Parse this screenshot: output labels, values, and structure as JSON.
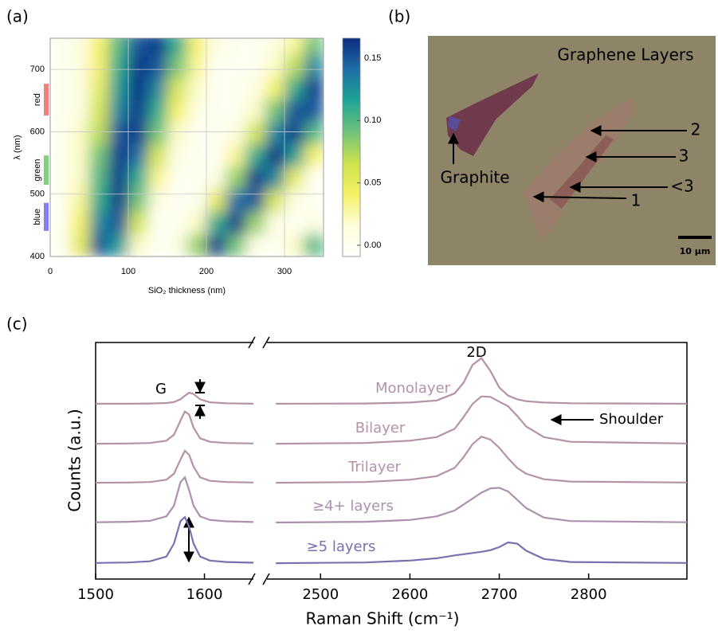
{
  "panel_labels": [
    "(a)",
    "(b)",
    "(c)"
  ],
  "chart_data": [
    {
      "type": "heatmap",
      "xlabel": "SiO₂ thickness (nm)",
      "ylabel": "λ (nm)",
      "xlim": [
        0,
        350
      ],
      "xticks": [
        0,
        100,
        200,
        300
      ],
      "ylim": [
        400,
        750
      ],
      "yticks": [
        400,
        500,
        600,
        700
      ],
      "grid": true,
      "x": [
        12.5,
        37.5,
        62.5,
        87.5,
        112.5,
        137.5,
        162.5,
        187.5,
        212.5,
        237.5,
        262.5,
        287.5,
        312.5,
        337.5
      ],
      "y": [
        418,
        454,
        490,
        526,
        562,
        598,
        634,
        670,
        706,
        742
      ],
      "z": [
        [
          0,
          0.05,
          0.15,
          0.12,
          0.02,
          0,
          0.01,
          0.08,
          0.16,
          0.09,
          0.01,
          0,
          0.02,
          0.1
        ],
        [
          0,
          0.04,
          0.13,
          0.15,
          0.06,
          0,
          0,
          0.02,
          0.11,
          0.16,
          0.08,
          0.01,
          0,
          0.01
        ],
        [
          0,
          0.03,
          0.11,
          0.16,
          0.09,
          0.01,
          0,
          0,
          0.05,
          0.14,
          0.15,
          0.06,
          0.01,
          0
        ],
        [
          0,
          0.02,
          0.1,
          0.16,
          0.11,
          0.03,
          0,
          0,
          0.01,
          0.08,
          0.16,
          0.13,
          0.05,
          0
        ],
        [
          0,
          0.02,
          0.09,
          0.16,
          0.14,
          0.06,
          0.01,
          0,
          0,
          0.03,
          0.11,
          0.165,
          0.12,
          0.04
        ],
        [
          0,
          0.02,
          0.07,
          0.15,
          0.16,
          0.09,
          0.02,
          0,
          0,
          0.01,
          0.06,
          0.13,
          0.16,
          0.1
        ],
        [
          0,
          0.01,
          0.06,
          0.13,
          0.16,
          0.11,
          0.04,
          0.01,
          0,
          0,
          0.02,
          0.09,
          0.15,
          0.15
        ],
        [
          0,
          0.01,
          0.05,
          0.12,
          0.165,
          0.13,
          0.06,
          0.02,
          0,
          0,
          0.01,
          0.04,
          0.11,
          0.16
        ],
        [
          0,
          0.01,
          0.04,
          0.11,
          0.16,
          0.15,
          0.09,
          0.03,
          0,
          0,
          0,
          0.02,
          0.07,
          0.13
        ],
        [
          0,
          0.01,
          0.04,
          0.1,
          0.15,
          0.16,
          0.11,
          0.04,
          0.01,
          0,
          0,
          0.01,
          0.03,
          0.09
        ]
      ],
      "colormap": [
        "#ffffff",
        "#fdfdd8",
        "#f5f066",
        "#cce24c",
        "#6fc27a",
        "#1fa496",
        "#1f6fa6",
        "#0c2a82"
      ],
      "colorbar": {
        "lim": [
          -0.009,
          0.166
        ],
        "ticks": [
          {
            "value": 0,
            "label": "0.00"
          },
          0.05,
          {
            "value": 0.1,
            "label": "0.10"
          },
          0.15
        ]
      },
      "bands": [
        {
          "name": "red",
          "range": [
            626,
            677
          ],
          "color": "#f08080"
        },
        {
          "name": "green",
          "range": [
            515,
            562
          ],
          "color": "#7fd07f"
        },
        {
          "name": "blue",
          "range": [
            441,
            486
          ],
          "color": "#8080f0"
        }
      ]
    },
    {
      "type": "line",
      "xlabel": "Raman Shift (cm⁻¹)",
      "ylabel": "Counts (a.u.)",
      "xlim": [
        [
          1500,
          1645
        ],
        [
          2440,
          2910
        ]
      ],
      "xticks": [
        1500,
        1600,
        2500,
        2600,
        2700,
        2800
      ],
      "ylim": [
        0,
        10
      ],
      "x": [
        1500,
        1530,
        1550,
        1565,
        1572,
        1578,
        1582,
        1586,
        1590,
        1596,
        1605,
        1620,
        1645,
        2450,
        2550,
        2600,
        2630,
        2650,
        2660,
        2670,
        2680,
        2690,
        2700,
        2710,
        2720,
        2730,
        2750,
        2780,
        2910
      ],
      "series": [
        {
          "name": "Monolayer",
          "color": "#b592a8",
          "values": [
            7.41,
            7.41,
            7.42,
            7.44,
            7.48,
            7.6,
            7.75,
            7.88,
            7.82,
            7.6,
            7.47,
            7.43,
            7.41,
            7.41,
            7.42,
            7.46,
            7.55,
            7.85,
            8.3,
            9.05,
            9.34,
            8.8,
            8.1,
            7.75,
            7.6,
            7.52,
            7.46,
            7.43,
            7.41
          ]
        },
        {
          "name": "Bilayer",
          "color": "#b592a8",
          "values": [
            5.72,
            5.73,
            5.75,
            5.85,
            6.1,
            6.7,
            7.08,
            6.95,
            6.4,
            5.95,
            5.8,
            5.75,
            5.73,
            5.72,
            5.75,
            5.85,
            6.0,
            6.35,
            6.85,
            7.4,
            7.72,
            7.7,
            7.5,
            7.3,
            6.9,
            6.45,
            6.0,
            5.8,
            5.73
          ]
        },
        {
          "name": "Trilayer",
          "color": "#b592a8",
          "values": [
            4.07,
            4.08,
            4.1,
            4.2,
            4.45,
            5.05,
            5.42,
            5.25,
            4.75,
            4.3,
            4.15,
            4.1,
            4.08,
            4.07,
            4.1,
            4.2,
            4.35,
            4.7,
            5.15,
            5.7,
            6.02,
            5.9,
            5.55,
            5.1,
            4.7,
            4.45,
            4.22,
            4.12,
            4.08
          ]
        },
        {
          "name": "≥4+ layers",
          "color": "#ad8fb0",
          "values": [
            2.4,
            2.42,
            2.46,
            2.65,
            3.1,
            4.1,
            4.3,
            3.75,
            3.1,
            2.65,
            2.5,
            2.44,
            2.41,
            2.39,
            2.42,
            2.5,
            2.65,
            2.9,
            3.15,
            3.4,
            3.65,
            3.83,
            3.86,
            3.7,
            3.35,
            3.0,
            2.6,
            2.45,
            2.4
          ]
        },
        {
          "name": "≥5 layers",
          "color": "#7b6fb0",
          "values": [
            0.68,
            0.7,
            0.75,
            0.95,
            1.5,
            2.45,
            2.62,
            2.2,
            1.5,
            0.95,
            0.78,
            0.72,
            0.69,
            0.67,
            0.7,
            0.78,
            0.88,
            1.0,
            1.05,
            1.1,
            1.15,
            1.22,
            1.35,
            1.55,
            1.5,
            1.2,
            0.85,
            0.72,
            0.68
          ]
        }
      ],
      "annotations": [
        "G",
        "2D",
        "Shoulder"
      ]
    }
  ],
  "micrograph": {
    "title": "Graphene Layers",
    "labels": [
      "Graphite",
      "2",
      "3",
      "<3",
      "1"
    ],
    "scale_bar": "10 µm"
  }
}
